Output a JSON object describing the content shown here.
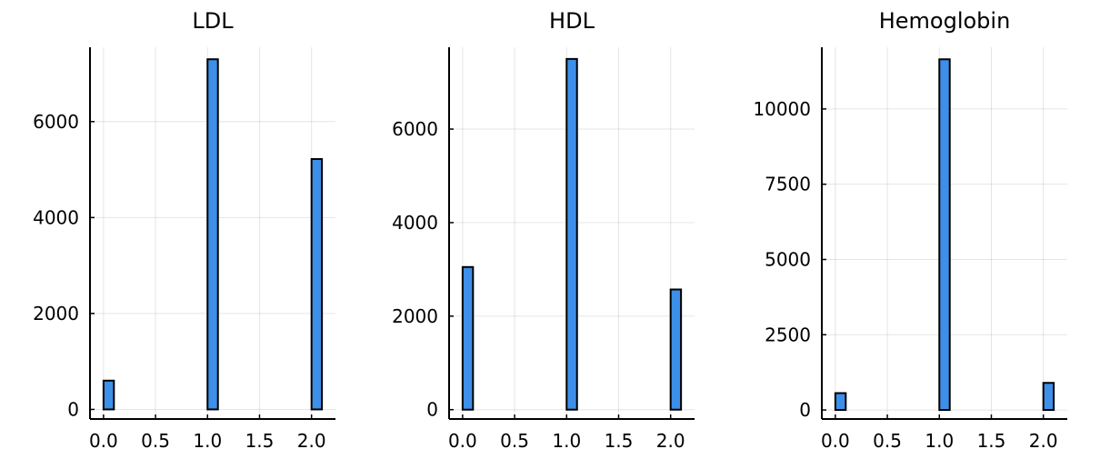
{
  "colors": {
    "bar_fill": "#3d8fe8",
    "bar_stroke": "#000000"
  },
  "chart_data": [
    {
      "type": "bar",
      "title": "LDL",
      "xlabel": "",
      "ylabel": "",
      "grid": true,
      "xlim": [
        -0.13,
        2.23
      ],
      "ylim": [
        -200,
        7550
      ],
      "xticks": [
        0.0,
        0.5,
        1.0,
        1.5,
        2.0
      ],
      "xtick_labels": [
        "0.0",
        "0.5",
        "1.0",
        "1.5",
        "2.0"
      ],
      "yticks": [
        0,
        2000,
        4000,
        6000
      ],
      "ytick_labels": [
        "0",
        "2000",
        "4000",
        "6000"
      ],
      "bin_width": 0.1,
      "bins": [
        {
          "x": 0.0,
          "value": 600
        },
        {
          "x": 1.0,
          "value": 7300
        },
        {
          "x": 2.0,
          "value": 5220
        }
      ]
    },
    {
      "type": "bar",
      "title": "HDL",
      "xlabel": "",
      "ylabel": "",
      "grid": true,
      "xlim": [
        -0.13,
        2.23
      ],
      "ylim": [
        -200,
        7750
      ],
      "xticks": [
        0.0,
        0.5,
        1.0,
        1.5,
        2.0
      ],
      "xtick_labels": [
        "0.0",
        "0.5",
        "1.0",
        "1.5",
        "2.0"
      ],
      "yticks": [
        0,
        2000,
        4000,
        6000
      ],
      "ytick_labels": [
        "0",
        "2000",
        "4000",
        "6000"
      ],
      "bin_width": 0.1,
      "bins": [
        {
          "x": 0.0,
          "value": 3050
        },
        {
          "x": 1.0,
          "value": 7500
        },
        {
          "x": 2.0,
          "value": 2570
        }
      ]
    },
    {
      "type": "bar",
      "title": "Hemoglobin",
      "xlabel": "",
      "ylabel": "",
      "grid": true,
      "xlim": [
        -0.13,
        2.23
      ],
      "ylim": [
        -300,
        12050
      ],
      "xticks": [
        0.0,
        0.5,
        1.0,
        1.5,
        2.0
      ],
      "xtick_labels": [
        "0.0",
        "0.5",
        "1.0",
        "1.5",
        "2.0"
      ],
      "yticks": [
        0,
        2500,
        5000,
        7500,
        10000
      ],
      "ytick_labels": [
        "0",
        "2500",
        "5000",
        "7500",
        "10000"
      ],
      "bin_width": 0.1,
      "bins": [
        {
          "x": 0.0,
          "value": 560
        },
        {
          "x": 1.0,
          "value": 11650
        },
        {
          "x": 2.0,
          "value": 900
        }
      ]
    }
  ]
}
